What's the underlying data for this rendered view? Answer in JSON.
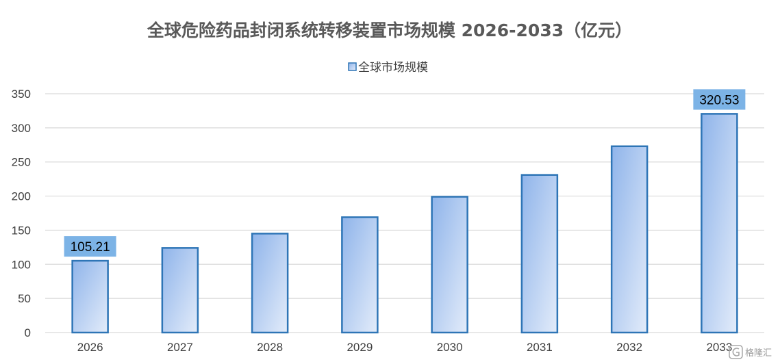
{
  "colors": {
    "bar_stroke": "#2e75b6",
    "bar_gradient_start": "#8fb4ea",
    "bar_gradient_end": "#e3ecfa",
    "data_label_bg": "#7cb3e6",
    "grid": "#d9d9d9",
    "text": "#404040",
    "title": "#595959"
  },
  "watermark": {
    "text": "格隆汇",
    "icon": "gelonghui-logo-icon"
  },
  "chart_data": {
    "type": "bar",
    "title": "全球危险药品封闭系统转移装置市场规模 2026-2033（亿元）",
    "xlabel": "",
    "ylabel": "",
    "categories": [
      "2026",
      "2027",
      "2028",
      "2029",
      "2030",
      "2031",
      "2032",
      "2033"
    ],
    "series": [
      {
        "name": "全球市场规模",
        "values": [
          105.21,
          124,
          145,
          169,
          199,
          231,
          273,
          320.53
        ]
      }
    ],
    "data_labels": [
      {
        "index": 0,
        "text": "105.21"
      },
      {
        "index": 7,
        "text": "320.53"
      }
    ],
    "ylim": [
      0,
      350
    ],
    "yticks": [
      0,
      50,
      100,
      150,
      200,
      250,
      300,
      350
    ],
    "grid": true,
    "legend_position": "top-center"
  }
}
